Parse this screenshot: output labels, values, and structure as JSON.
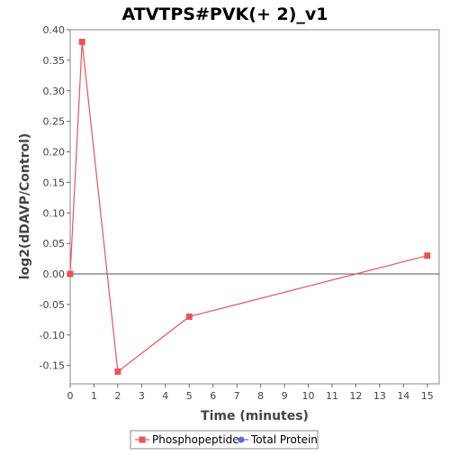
{
  "chart_data": {
    "type": "line",
    "title": "ATVTPS#PVK(+ 2)_v1",
    "xlabel": "Time (minutes)",
    "ylabel": "log2(dDAVP/Control)",
    "xlim": [
      0,
      15.5
    ],
    "ylim": [
      -0.18,
      0.4
    ],
    "x_ticks": [
      0,
      1,
      2,
      3,
      4,
      5,
      6,
      7,
      8,
      9,
      10,
      11,
      12,
      13,
      14,
      15
    ],
    "y_ticks": [
      0.4,
      0.35,
      0.3,
      0.25,
      0.2,
      0.15,
      0.1,
      0.05,
      0.0,
      -0.05,
      -0.1,
      -0.15
    ],
    "y_tick_labels": [
      "0.40",
      "0.35",
      "0.30",
      "0.25",
      "0.20",
      "0.15",
      "0.10",
      "0.05",
      "0.00",
      "-0.05",
      "-0.10",
      "-0.15"
    ],
    "zero_line": true,
    "grid": false,
    "legend_position": "bottom",
    "series": [
      {
        "name": "Phosphopeptide",
        "color": "#e8545a",
        "marker": "square",
        "x": [
          0,
          0.5,
          2,
          5,
          15
        ],
        "y": [
          0.0,
          0.38,
          -0.16,
          -0.07,
          0.03
        ]
      },
      {
        "name": "Total Protein",
        "color": "#5a6ee8",
        "marker": "circle",
        "x": [],
        "y": []
      }
    ]
  }
}
